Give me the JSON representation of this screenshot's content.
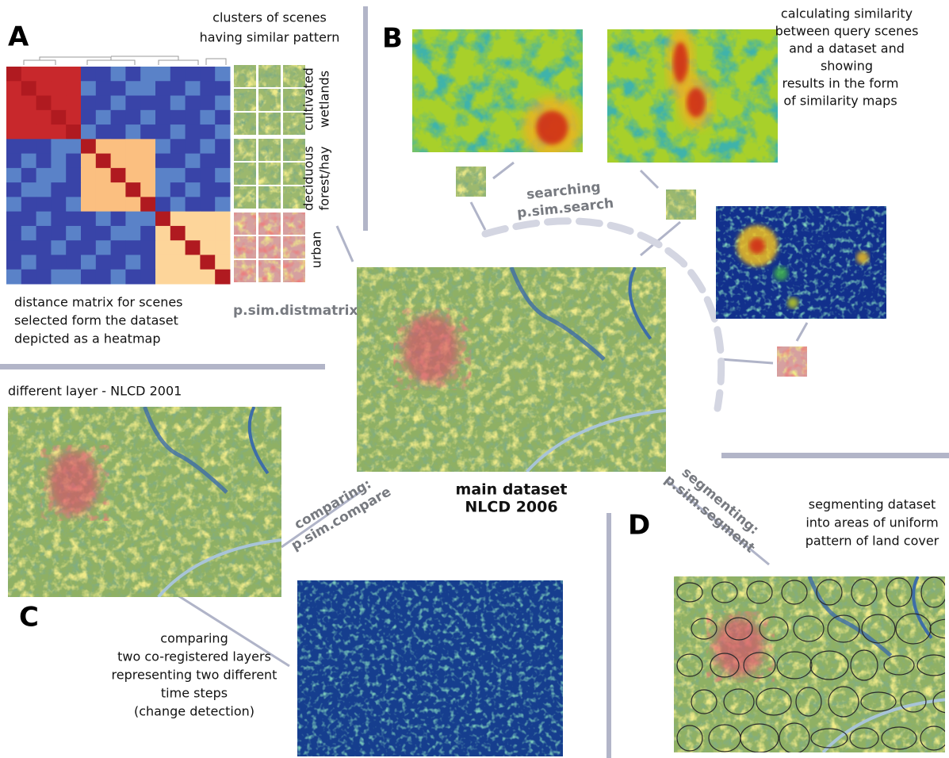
{
  "panel_a": {
    "label": "A",
    "clusters_title": [
      "clusters of scenes",
      "having similar pattern"
    ],
    "cluster_labels": [
      [
        "cultivated",
        "wetlands"
      ],
      [
        "deciduous",
        "forest/hay"
      ],
      [
        "urban"
      ]
    ],
    "caption": [
      "distance matrix for scenes",
      "selected form the dataset",
      "depicted as a heatmap"
    ],
    "command": "p.sim.distmatrix"
  },
  "panel_b": {
    "label": "B",
    "operation": [
      "searching",
      "p.sim.search"
    ],
    "caption": [
      "calculating similarity",
      "between query scenes",
      "and a dataset and",
      "showing",
      "results in the form",
      "of similarity maps"
    ]
  },
  "main_dataset": [
    "main dataset",
    "NLCD 2006"
  ],
  "panel_c": {
    "label": "C",
    "layer_title": "different layer - NLCD 2001",
    "operation": [
      "comparing:",
      "p.sim.compare"
    ],
    "caption": [
      "comparing",
      "two co-registered layers",
      "representing two different",
      "time steps",
      "(change detection)"
    ]
  },
  "panel_d": {
    "label": "D",
    "operation": [
      "segmenting:",
      "p.sim.segment"
    ],
    "caption": [
      "segmenting dataset",
      "into areas of uniform",
      "pattern of land cover"
    ]
  }
}
